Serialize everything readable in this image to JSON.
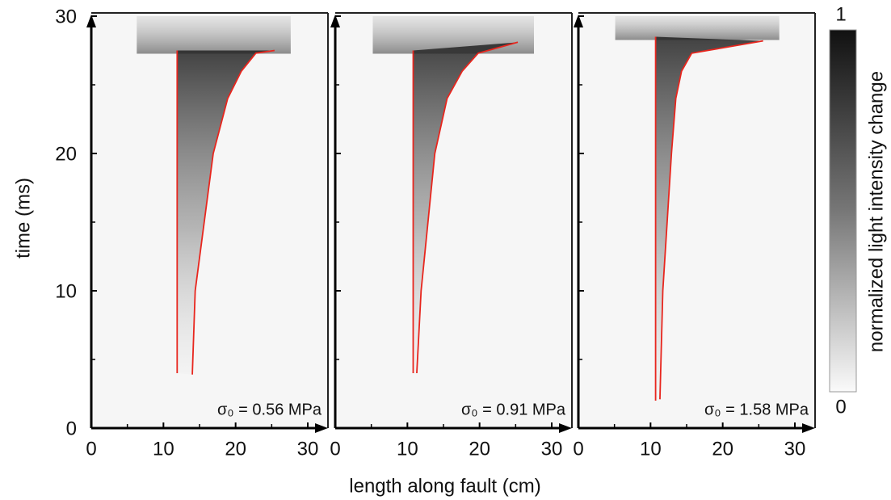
{
  "figure": {
    "xlabel": "length along fault (cm)",
    "ylabel": "time (ms)"
  },
  "colorbar": {
    "label": "normalized light intensity change",
    "lim": [
      0,
      1
    ],
    "ticks": [
      0,
      1
    ]
  },
  "chart_data": [
    {
      "type": "line",
      "annotation": "σ₀ = 0.56 MPa",
      "xlim": [
        0,
        30
      ],
      "ylim": [
        0,
        30
      ],
      "xticks": [
        0,
        10,
        20,
        30
      ],
      "yticks": [
        0,
        10,
        20,
        30
      ],
      "lines": [
        {
          "color": "#e8261e",
          "x": [
            11.9,
            11.9
          ],
          "y": [
            4,
            27.5
          ]
        },
        {
          "color": "#e8261e",
          "x": [
            14,
            14.4,
            16.9,
            18.9,
            20.8,
            22.8,
            25.4
          ],
          "y": [
            3.9,
            10,
            20,
            24,
            26,
            27.3,
            27.5
          ]
        }
      ]
    },
    {
      "type": "line",
      "annotation": "σ₀ = 0.91 MPa",
      "xlim": [
        0,
        30
      ],
      "ylim": [
        0,
        30
      ],
      "xticks": [
        0,
        10,
        20,
        30
      ],
      "lines": [
        {
          "color": "#e8261e",
          "x": [
            10.8,
            10.8
          ],
          "y": [
            4,
            27.5
          ]
        },
        {
          "color": "#e8261e",
          "x": [
            11.3,
            11.9,
            13.8,
            15.5,
            17.6,
            19.8,
            25.3
          ],
          "y": [
            4,
            10,
            20,
            24,
            26,
            27.3,
            28.1
          ]
        }
      ]
    },
    {
      "type": "line",
      "annotation": "σ₀ = 1.58 MPa",
      "xlim": [
        0,
        30
      ],
      "ylim": [
        0,
        30
      ],
      "xticks": [
        0,
        10,
        20,
        30
      ],
      "lines": [
        {
          "color": "#e8261e",
          "x": [
            10.7,
            10.7
          ],
          "y": [
            2,
            28.5
          ]
        },
        {
          "color": "#e8261e",
          "x": [
            11.3,
            11.7,
            12.9,
            13.5,
            14.3,
            15.7,
            25.6
          ],
          "y": [
            2.1,
            10,
            20,
            24,
            26,
            27.3,
            28.2
          ]
        }
      ]
    }
  ]
}
